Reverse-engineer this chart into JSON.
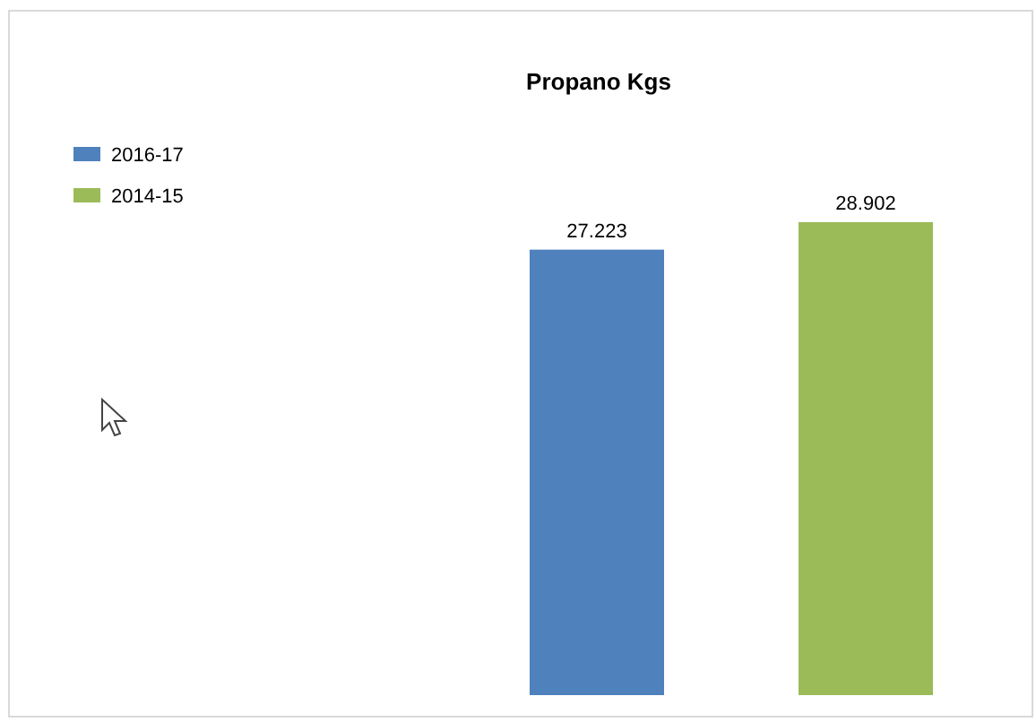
{
  "chart_data": {
    "type": "bar",
    "title": "Propano Kgs",
    "categories": [
      null,
      null
    ],
    "values": [
      27.223,
      28.902
    ],
    "colors": [
      "#4f81bd",
      "#9bbb59"
    ],
    "annotations": [
      "2016-17",
      "2014-15"
    ],
    "data_labels": true
  }
}
